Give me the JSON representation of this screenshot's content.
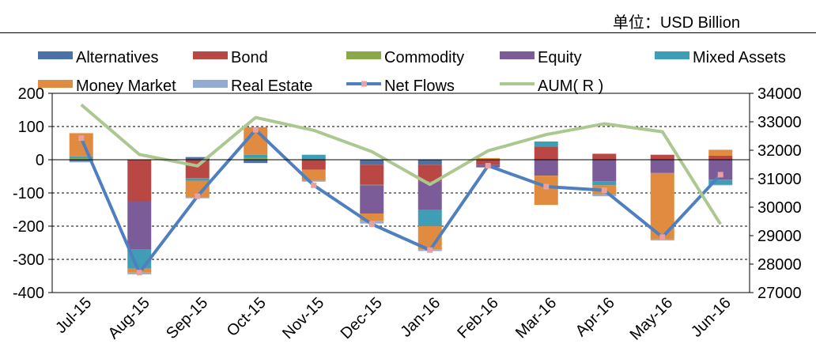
{
  "unit_label": "单位：USD Billion",
  "chart_data": {
    "type": "bar",
    "stacked": true,
    "categories": [
      "Jul-15",
      "Aug-15",
      "Sep-15",
      "Oct-15",
      "Nov-15",
      "Dec-15",
      "Jan-16",
      "Feb-16",
      "Mar-16",
      "Apr-16",
      "May-16",
      "Jun-16"
    ],
    "ylim": [
      -400,
      200
    ],
    "yticks": [
      200,
      100,
      0,
      -100,
      -200,
      -300,
      -400
    ],
    "y2lim": [
      27000,
      34000
    ],
    "y2ticks": [
      34000,
      33000,
      32000,
      31000,
      30000,
      29000,
      28000,
      27000
    ],
    "series": [
      {
        "name": "Alternatives",
        "color": "#4a72a8",
        "values": [
          -5,
          0,
          8,
          -10,
          0,
          -15,
          -15,
          0,
          0,
          0,
          0,
          0
        ]
      },
      {
        "name": "Bond",
        "color": "#b94845",
        "values": [
          0,
          -125,
          -55,
          0,
          -30,
          -60,
          -50,
          -15,
          40,
          18,
          15,
          12
        ]
      },
      {
        "name": "Commodity",
        "color": "#8aa84a",
        "values": [
          5,
          0,
          0,
          5,
          0,
          -2,
          0,
          0,
          0,
          0,
          0,
          0
        ]
      },
      {
        "name": "Equity",
        "color": "#7b5b98",
        "values": [
          0,
          -145,
          0,
          0,
          0,
          -85,
          -85,
          -8,
          -48,
          -65,
          -40,
          -60
        ]
      },
      {
        "name": "Mixed Assets",
        "color": "#3f9db5",
        "values": [
          5,
          -58,
          -8,
          10,
          15,
          0,
          -50,
          0,
          15,
          -12,
          0,
          -15
        ]
      },
      {
        "name": "Money Market",
        "color": "#e08b3f",
        "values": [
          70,
          -12,
          -50,
          83,
          -33,
          -22,
          -70,
          5,
          -88,
          -28,
          -200,
          18
        ]
      },
      {
        "name": "Real Estate",
        "color": "#94acd4",
        "values": [
          -3,
          -5,
          -3,
          0,
          -3,
          -8,
          -5,
          0,
          0,
          -5,
          -3,
          -2
        ]
      }
    ],
    "lines": [
      {
        "name": "Net Flows",
        "color": "#4f7fbf",
        "marker_color": "#e8a0a0",
        "axis": "left",
        "values": [
          65,
          -340,
          -110,
          90,
          -77,
          -194,
          -272,
          -18,
          -81,
          -92,
          -233,
          -45
        ]
      },
      {
        "name": "AUM( R )",
        "color": "#abc890",
        "axis": "right",
        "values": [
          33600,
          31850,
          31450,
          33150,
          32700,
          31950,
          30800,
          31980,
          32550,
          32930,
          32650,
          29400
        ]
      }
    ],
    "legend": [
      "Alternatives",
      "Bond",
      "Commodity",
      "Equity",
      "Mixed Assets",
      "Money Market",
      "Real Estate",
      "Net Flows",
      "AUM( R )"
    ],
    "legend_position": "top"
  }
}
